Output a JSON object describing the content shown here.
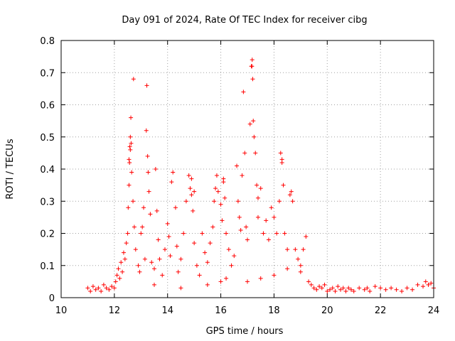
{
  "chart_data": {
    "type": "scatter",
    "title": "Day 091 of 2024, Rate Of TEC Index for receiver cibg",
    "xlabel": "GPS time / hours",
    "ylabel": "ROTI / TECUs",
    "xlim": [
      10,
      24
    ],
    "ylim": [
      0,
      0.8
    ],
    "xticks": [
      10,
      12,
      14,
      16,
      18,
      20,
      22,
      24
    ],
    "xtick_labels": [
      "10",
      "12",
      "14",
      "16",
      "18",
      "20",
      "22",
      "24"
    ],
    "yticks": [
      0,
      0.1,
      0.2,
      0.3,
      0.4,
      0.5,
      0.6,
      0.7,
      0.8
    ],
    "ytick_labels": [
      "0",
      "0.1",
      "0.2",
      "0.3",
      "0.4",
      "0.5",
      "0.6",
      "0.7",
      "0.8"
    ],
    "grid": true,
    "legend": "none",
    "marker": "plus",
    "color": "#ff0000",
    "series": [
      {
        "points": [
          [
            11.0,
            0.03
          ],
          [
            11.1,
            0.02
          ],
          [
            11.2,
            0.035
          ],
          [
            11.3,
            0.025
          ],
          [
            11.4,
            0.03
          ],
          [
            11.5,
            0.02
          ],
          [
            11.6,
            0.04
          ],
          [
            11.7,
            0.03
          ],
          [
            11.8,
            0.025
          ],
          [
            11.9,
            0.035
          ],
          [
            12.0,
            0.03
          ],
          [
            12.05,
            0.05
          ],
          [
            12.1,
            0.07
          ],
          [
            12.15,
            0.09
          ],
          [
            12.2,
            0.06
          ],
          [
            12.25,
            0.11
          ],
          [
            12.3,
            0.08
          ],
          [
            12.35,
            0.14
          ],
          [
            12.4,
            0.12
          ],
          [
            12.45,
            0.17
          ],
          [
            12.5,
            0.2
          ],
          [
            12.52,
            0.28
          ],
          [
            12.55,
            0.35
          ],
          [
            12.57,
            0.42
          ],
          [
            12.58,
            0.47
          ],
          [
            12.6,
            0.5
          ],
          [
            12.62,
            0.56
          ],
          [
            12.65,
            0.39
          ],
          [
            12.7,
            0.3
          ],
          [
            12.72,
            0.68
          ],
          [
            12.75,
            0.22
          ],
          [
            12.8,
            0.15
          ],
          [
            12.9,
            0.1
          ],
          [
            12.95,
            0.08
          ],
          [
            13.0,
            0.2
          ],
          [
            13.05,
            0.22
          ],
          [
            13.1,
            0.28
          ],
          [
            13.15,
            0.12
          ],
          [
            13.2,
            0.52
          ],
          [
            13.22,
            0.66
          ],
          [
            13.25,
            0.44
          ],
          [
            13.27,
            0.39
          ],
          [
            13.3,
            0.33
          ],
          [
            13.35,
            0.26
          ],
          [
            13.4,
            0.11
          ],
          [
            13.5,
            0.09
          ],
          [
            13.55,
            0.4
          ],
          [
            13.6,
            0.27
          ],
          [
            13.65,
            0.18
          ],
          [
            13.7,
            0.12
          ],
          [
            13.8,
            0.07
          ],
          [
            13.9,
            0.15
          ],
          [
            14.0,
            0.23
          ],
          [
            14.05,
            0.19
          ],
          [
            14.1,
            0.13
          ],
          [
            14.15,
            0.36
          ],
          [
            14.2,
            0.39
          ],
          [
            14.3,
            0.28
          ],
          [
            14.35,
            0.16
          ],
          [
            14.4,
            0.08
          ],
          [
            14.5,
            0.12
          ],
          [
            14.6,
            0.2
          ],
          [
            14.7,
            0.3
          ],
          [
            14.8,
            0.38
          ],
          [
            14.85,
            0.34
          ],
          [
            14.9,
            0.32
          ],
          [
            14.95,
            0.27
          ],
          [
            15.0,
            0.17
          ],
          [
            15.1,
            0.1
          ],
          [
            15.2,
            0.07
          ],
          [
            15.3,
            0.2
          ],
          [
            15.4,
            0.14
          ],
          [
            15.5,
            0.11
          ],
          [
            15.6,
            0.17
          ],
          [
            15.7,
            0.22
          ],
          [
            15.75,
            0.3
          ],
          [
            15.8,
            0.34
          ],
          [
            15.85,
            0.38
          ],
          [
            15.9,
            0.33
          ],
          [
            16.0,
            0.29
          ],
          [
            16.05,
            0.24
          ],
          [
            16.1,
            0.36
          ],
          [
            16.15,
            0.31
          ],
          [
            16.2,
            0.2
          ],
          [
            16.3,
            0.15
          ],
          [
            16.4,
            0.1
          ],
          [
            16.5,
            0.13
          ],
          [
            16.6,
            0.41
          ],
          [
            16.65,
            0.3
          ],
          [
            16.7,
            0.25
          ],
          [
            16.8,
            0.38
          ],
          [
            16.85,
            0.64
          ],
          [
            16.9,
            0.45
          ],
          [
            16.95,
            0.22
          ],
          [
            17.0,
            0.18
          ],
          [
            17.1,
            0.54
          ],
          [
            17.15,
            0.72
          ],
          [
            17.18,
            0.74
          ],
          [
            17.2,
            0.68
          ],
          [
            17.22,
            0.55
          ],
          [
            17.25,
            0.5
          ],
          [
            17.3,
            0.45
          ],
          [
            17.35,
            0.35
          ],
          [
            17.4,
            0.25
          ],
          [
            17.5,
            0.34
          ],
          [
            17.6,
            0.2
          ],
          [
            17.7,
            0.24
          ],
          [
            17.8,
            0.18
          ],
          [
            17.9,
            0.28
          ],
          [
            18.0,
            0.25
          ],
          [
            18.1,
            0.2
          ],
          [
            18.2,
            0.3
          ],
          [
            18.25,
            0.45
          ],
          [
            18.3,
            0.42
          ],
          [
            18.35,
            0.35
          ],
          [
            18.4,
            0.2
          ],
          [
            18.5,
            0.15
          ],
          [
            18.6,
            0.32
          ],
          [
            18.65,
            0.33
          ],
          [
            18.7,
            0.3
          ],
          [
            18.8,
            0.15
          ],
          [
            18.9,
            0.12
          ],
          [
            19.0,
            0.1
          ],
          [
            19.1,
            0.15
          ],
          [
            19.2,
            0.19
          ],
          [
            19.3,
            0.05
          ],
          [
            19.4,
            0.04
          ],
          [
            19.5,
            0.03
          ],
          [
            19.6,
            0.025
          ],
          [
            19.7,
            0.035
          ],
          [
            19.8,
            0.03
          ],
          [
            19.9,
            0.04
          ],
          [
            20.0,
            0.02
          ],
          [
            20.1,
            0.025
          ],
          [
            20.2,
            0.03
          ],
          [
            20.3,
            0.02
          ],
          [
            20.4,
            0.035
          ],
          [
            20.5,
            0.025
          ],
          [
            20.6,
            0.03
          ],
          [
            20.7,
            0.02
          ],
          [
            20.8,
            0.03
          ],
          [
            20.9,
            0.025
          ],
          [
            21.0,
            0.02
          ],
          [
            21.2,
            0.03
          ],
          [
            21.4,
            0.025
          ],
          [
            21.5,
            0.03
          ],
          [
            21.6,
            0.02
          ],
          [
            21.8,
            0.035
          ],
          [
            22.0,
            0.03
          ],
          [
            22.2,
            0.025
          ],
          [
            22.4,
            0.03
          ],
          [
            22.6,
            0.025
          ],
          [
            22.8,
            0.02
          ],
          [
            23.0,
            0.03
          ],
          [
            23.2,
            0.025
          ],
          [
            23.4,
            0.04
          ],
          [
            23.6,
            0.035
          ],
          [
            23.7,
            0.05
          ],
          [
            23.8,
            0.04
          ],
          [
            23.9,
            0.045
          ],
          [
            24.0,
            0.03
          ],
          [
            12.6,
            0.46
          ],
          [
            12.63,
            0.48
          ],
          [
            12.55,
            0.43
          ],
          [
            17.17,
            0.72
          ],
          [
            18.3,
            0.43
          ],
          [
            16.75,
            0.21
          ],
          [
            15.0,
            0.33
          ],
          [
            14.9,
            0.37
          ],
          [
            16.1,
            0.37
          ],
          [
            17.4,
            0.31
          ],
          [
            16.0,
            0.05
          ],
          [
            16.2,
            0.06
          ],
          [
            17.0,
            0.05
          ],
          [
            17.5,
            0.06
          ],
          [
            18.0,
            0.07
          ],
          [
            18.5,
            0.09
          ],
          [
            19.0,
            0.08
          ],
          [
            15.5,
            0.04
          ],
          [
            14.5,
            0.03
          ],
          [
            13.5,
            0.04
          ]
        ]
      }
    ]
  }
}
